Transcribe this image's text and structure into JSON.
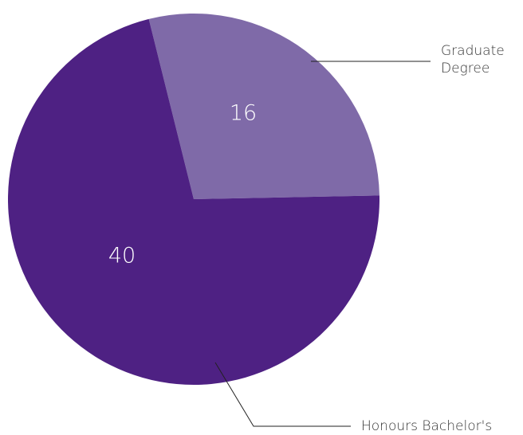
{
  "chart_data": {
    "type": "pie",
    "categories": [
      "Graduate Degree",
      "Honours Bachelor's"
    ],
    "values": [
      16,
      40
    ],
    "colors": [
      "#7f6aa8",
      "#4e2183"
    ]
  }
}
